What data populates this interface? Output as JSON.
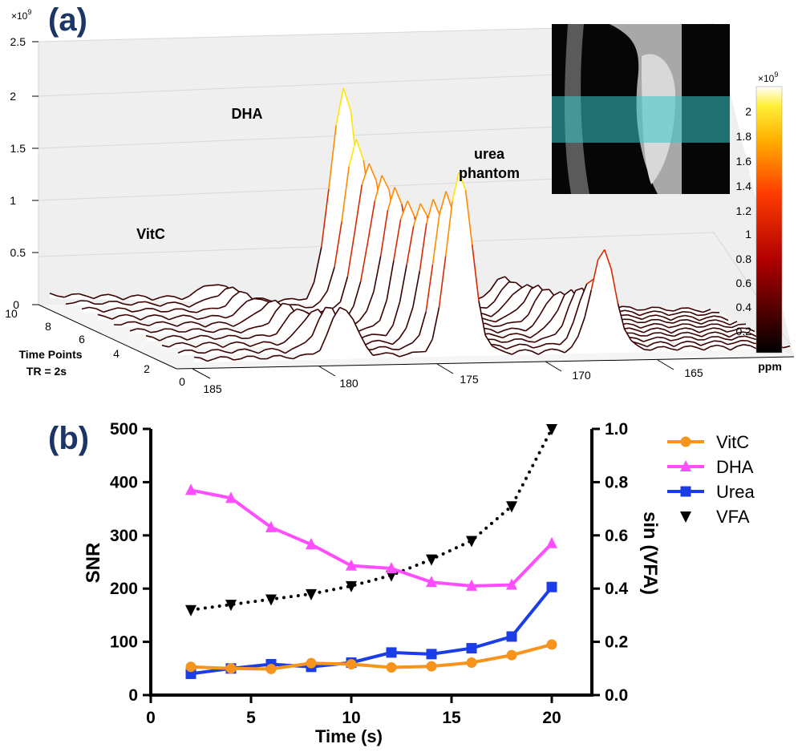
{
  "panel_a": {
    "label": "(a)",
    "multiplier": "×10",
    "multiplier_exp": "9",
    "z_ticks": [
      "0",
      "0.5",
      "1",
      "1.5",
      "2",
      "2.5"
    ],
    "time_ticks": [
      "0",
      "2",
      "4",
      "6",
      "8",
      "10"
    ],
    "ppm_ticks": [
      "185",
      "180",
      "175",
      "170",
      "165"
    ],
    "time_label_1": "Time Points",
    "time_label_2": "TR = 2s",
    "ppm_label": "ppm",
    "annotations": {
      "vitc": "VitC",
      "dha": "DHA",
      "urea_1": "urea",
      "urea_2": "phantom"
    },
    "colorbar": {
      "multiplier": "×10",
      "multiplier_exp": "9",
      "ticks": [
        "2",
        "1.8",
        "1.6",
        "1.4",
        "1.2",
        "1",
        "0.8",
        "0.6",
        "0.4",
        "0.2"
      ]
    },
    "inset": "MR image with highlighted slice band",
    "colors": {
      "line_dark": "#3a0000",
      "line_red": "#d42b00",
      "line_orange": "#ff8c00",
      "line_yellow": "#ffe600",
      "band": "#39c9c9"
    }
  },
  "chart_data": [
    {
      "type": "waterfall",
      "title": "(a)",
      "x_axis": {
        "label": "ppm",
        "range": [
          186,
          164
        ],
        "ticks": [
          185,
          180,
          175,
          170,
          165
        ]
      },
      "depth_axis": {
        "label": "Time Points TR = 2s",
        "range": [
          0,
          10
        ]
      },
      "z_axis": {
        "multiplier": 1000000000.0,
        "range": [
          0,
          2.5
        ]
      },
      "peaks_ppm": {
        "VitC": 180.5,
        "DHA": 176.2,
        "urea phantom": 170.9
      },
      "spectra": [
        {
          "time_point": 1,
          "DHA": 1.75,
          "VitC": 0.48,
          "urea": 0.95
        },
        {
          "time_point": 2,
          "DHA": 1.5,
          "VitC": 0.4,
          "urea": 0.65
        },
        {
          "time_point": 3,
          "DHA": 1.35,
          "VitC": 0.32,
          "urea": 0.5
        },
        {
          "time_point": 4,
          "DHA": 1.28,
          "VitC": 0.28,
          "urea": 0.42
        },
        {
          "time_point": 5,
          "DHA": 1.25,
          "VitC": 0.25,
          "urea": 0.38
        },
        {
          "time_point": 6,
          "DHA": 1.3,
          "VitC": 0.22,
          "urea": 0.35
        },
        {
          "time_point": 7,
          "DHA": 1.38,
          "VitC": 0.2,
          "urea": 0.32
        },
        {
          "time_point": 8,
          "DHA": 1.45,
          "VitC": 0.18,
          "urea": 0.3
        },
        {
          "time_point": 9,
          "DHA": 1.6,
          "VitC": 0.16,
          "urea": 0.28
        },
        {
          "time_point": 10,
          "DHA": 2.05,
          "VitC": 0.15,
          "urea": 0.26
        }
      ]
    },
    {
      "type": "line",
      "title": "(b)",
      "xlabel": "Time (s)",
      "ylabel": "SNR",
      "y2label": "sin (VFA)",
      "xlim": [
        0,
        22
      ],
      "ylim": [
        0,
        500
      ],
      "y2lim": [
        0,
        1.0
      ],
      "x_ticks": [
        "0",
        "5",
        "10",
        "15",
        "20"
      ],
      "y_ticks": [
        "0",
        "100",
        "200",
        "300",
        "400",
        "500"
      ],
      "y2_ticks": [
        "0.0",
        "0.2",
        "0.4",
        "0.6",
        "0.8",
        "1.0"
      ],
      "x": [
        2,
        4,
        6,
        8,
        10,
        12,
        14,
        16,
        18,
        20
      ],
      "series": [
        {
          "name": "VitC",
          "axis": "left",
          "color": "#f7941d",
          "marker": "circle",
          "style": "solid",
          "values": [
            53,
            50,
            49,
            60,
            58,
            52,
            54,
            61,
            75,
            95
          ]
        },
        {
          "name": "DHA",
          "axis": "left",
          "color": "#ff4dff",
          "marker": "triangle-up",
          "style": "solid",
          "values": [
            385,
            370,
            315,
            283,
            243,
            238,
            212,
            205,
            207,
            285
          ]
        },
        {
          "name": "Urea",
          "axis": "left",
          "color": "#1a3de8",
          "marker": "square",
          "style": "solid",
          "values": [
            40,
            50,
            58,
            53,
            61,
            80,
            77,
            88,
            110,
            203
          ]
        },
        {
          "name": "VFA",
          "axis": "right",
          "color": "#000000",
          "marker": "triangle-down",
          "style": "dotted",
          "values": [
            0.32,
            0.34,
            0.36,
            0.38,
            0.41,
            0.45,
            0.51,
            0.58,
            0.71,
            1.0
          ]
        }
      ],
      "legend": "right"
    }
  ]
}
